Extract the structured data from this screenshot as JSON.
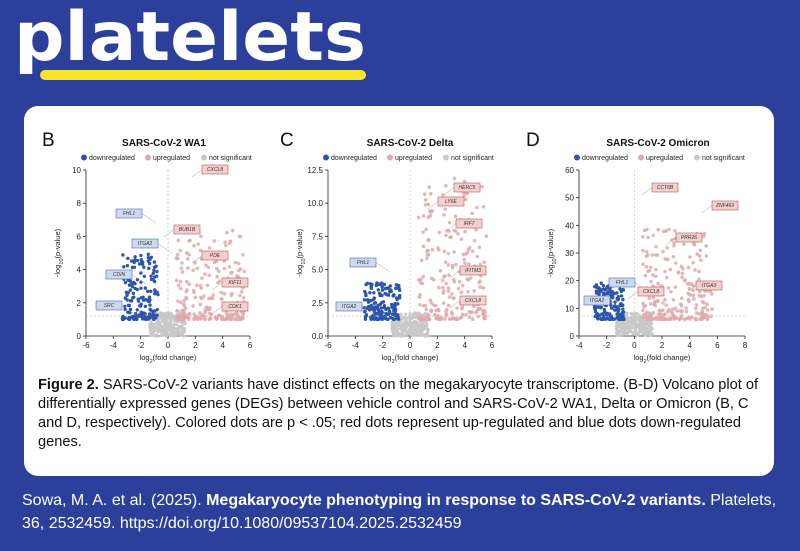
{
  "logo": {
    "text": "platelets",
    "text_color": "#ffffff",
    "underline_color": "#f6e52a"
  },
  "colors": {
    "background": "#2c3f9b",
    "card": "#ffffff",
    "down": "#2d55a8",
    "up": "#e0a9ab",
    "ns": "#c9c9c9"
  },
  "figure": {
    "legend": {
      "down": "downregulated",
      "up": "upregulated",
      "ns": "not significant"
    },
    "panels": [
      {
        "letter": "B",
        "title": "SARS-CoV-2 WA1",
        "xlabel_main": "log",
        "xlabel_sub": "2",
        "xlabel_rest": "(fold change)",
        "ylabel_main": "-log",
        "ylabel_sub": "10",
        "ylabel_rest": "(p-value)",
        "xticks": [
          "-6",
          "-4",
          "-2",
          "0",
          "2",
          "4",
          "6"
        ],
        "yticks": [
          "0",
          "2",
          "4",
          "6",
          "8",
          "10"
        ],
        "down_genes": [
          "FHL1",
          "ITGA2",
          "CDIN",
          "SRC"
        ],
        "up_genes": [
          "CXCL8",
          "BUB1B",
          "PDE",
          "KIF11",
          "CDK1"
        ]
      },
      {
        "letter": "C",
        "title": "SARS-CoV-2 Delta",
        "xlabel_main": "log",
        "xlabel_sub": "2",
        "xlabel_rest": "(fold change)",
        "ylabel_main": "-log",
        "ylabel_sub": "10",
        "ylabel_rest": "(p-value)",
        "xticks": [
          "-6",
          "-4",
          "-2",
          "0",
          "2",
          "4",
          "6"
        ],
        "yticks": [
          "0.0",
          "2.5",
          "5.0",
          "7.5",
          "10.0",
          "12.5"
        ],
        "down_genes": [
          "FHL1",
          "ITGA2"
        ],
        "up_genes": [
          "HERC5",
          "LY6E",
          "IRF7",
          "IFITM3",
          "CXCL8"
        ]
      },
      {
        "letter": "D",
        "title": "SARS-CoV-2 Omicron",
        "xlabel_main": "log",
        "xlabel_sub": "2",
        "xlabel_rest": "(fold change)",
        "ylabel_main": "-log",
        "ylabel_sub": "10",
        "ylabel_rest": "(p-value)",
        "xticks": [
          "-4",
          "-2",
          "0",
          "2",
          "4",
          "6",
          "8"
        ],
        "yticks": [
          "0",
          "10",
          "20",
          "30",
          "40",
          "50",
          "60"
        ],
        "down_genes": [
          "FHL1",
          "ITGA2"
        ],
        "up_genes": [
          "CCT6B",
          "ZNF469",
          "PRR26",
          "CXCL8",
          "ITGA3"
        ]
      }
    ]
  },
  "caption": {
    "label": "Figure 2.",
    "text": " SARS-CoV-2 variants have distinct effects on the megakaryocyte transcriptome. (B-D) Volcano plot of differentially expressed genes (DEGs) between vehicle control and SARS-CoV-2 WA1, Delta or Omicron (B, C and D, respectively). Colored dots are p < .05; red dots represent up-regulated and blue dots down-regulated genes."
  },
  "citation": {
    "authors": "Sowa, M. A. et al. (2025). ",
    "title": "Megakaryocyte phenotyping in response to SARS-CoV-2 variants.",
    "rest": " Platelets, 36, 2532459. https://doi.org/10.1080/09537104.2025.2532459"
  }
}
